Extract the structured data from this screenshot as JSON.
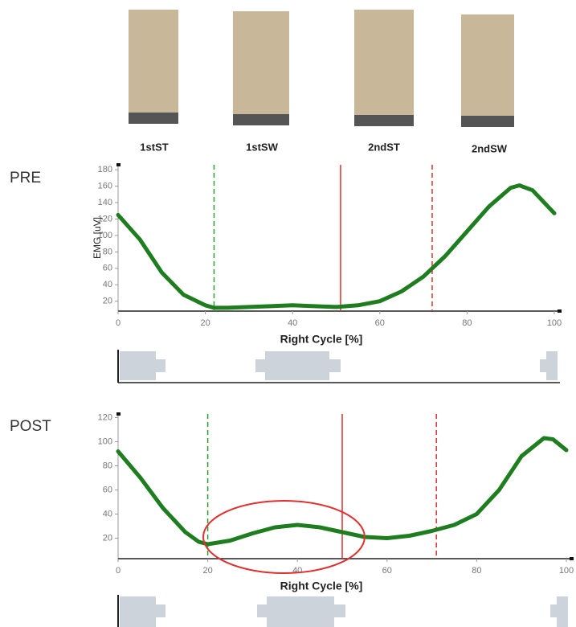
{
  "phases": [
    "1stST",
    "1stSW",
    "2ndST",
    "2ndSW"
  ],
  "chart_data": [
    {
      "type": "line",
      "title": "PRE",
      "x_label": "Right Cycle [%]",
      "y_label": "EMG [uV]",
      "x": [
        0,
        5,
        10,
        15,
        20,
        22,
        25,
        30,
        35,
        40,
        45,
        50,
        55,
        60,
        65,
        70,
        75,
        80,
        85,
        90,
        92,
        95,
        100
      ],
      "values": [
        125,
        95,
        55,
        28,
        15,
        12,
        12,
        13,
        14,
        15,
        14,
        13,
        15,
        20,
        32,
        50,
        75,
        105,
        135,
        158,
        161,
        155,
        127
      ],
      "color": "#1e7d1e",
      "xlim": [
        0,
        100
      ],
      "xticks": [
        0,
        20,
        40,
        60,
        80,
        100
      ],
      "ylim": [
        8,
        186
      ],
      "yticks": [
        20,
        40,
        60,
        80,
        100,
        120,
        140,
        160,
        180
      ],
      "reference_lines": [
        {
          "x": 22,
          "color": "#2ca02c",
          "dashed": true
        },
        {
          "x": 51,
          "color": "#e03030",
          "dashed": false
        },
        {
          "x": 72,
          "color": "#e03030",
          "dashed": true
        }
      ]
    },
    {
      "type": "line",
      "title": "POST",
      "x_label": "Right Cycle [%]",
      "x": [
        0,
        5,
        10,
        15,
        18,
        20,
        25,
        30,
        35,
        40,
        45,
        50,
        55,
        60,
        65,
        70,
        75,
        80,
        85,
        90,
        95,
        97,
        100
      ],
      "values": [
        92,
        70,
        45,
        25,
        17,
        15,
        18,
        24,
        29,
        31,
        29,
        25,
        21,
        20,
        22,
        26,
        31,
        40,
        60,
        88,
        103,
        102,
        93
      ],
      "color": "#1e7d1e",
      "xlim": [
        0,
        100
      ],
      "xticks": [
        0,
        20,
        40,
        60,
        80,
        100
      ],
      "ylim": [
        3,
        123
      ],
      "yticks": [
        20,
        40,
        60,
        80,
        100,
        120
      ],
      "reference_lines": [
        {
          "x": 20,
          "color": "#2ca02c",
          "dashed": true
        },
        {
          "x": 50,
          "color": "#e03030",
          "dashed": false
        },
        {
          "x": 71,
          "color": "#e03030",
          "dashed": true
        }
      ],
      "highlight": {
        "cx": 37,
        "cy": 21,
        "rx": 18,
        "ry": 30,
        "color": "#e03030"
      }
    }
  ]
}
